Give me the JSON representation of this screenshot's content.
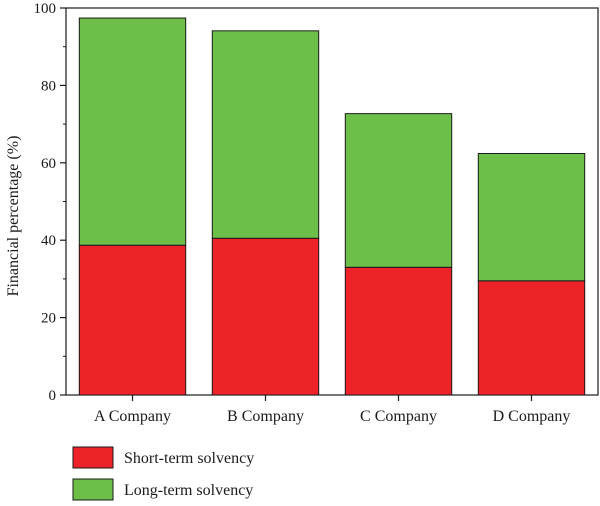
{
  "chart_data": {
    "type": "bar",
    "stacked": true,
    "categories": [
      "A Company",
      "B Company",
      "C Company",
      "D Company"
    ],
    "series": [
      {
        "name": "Short-term solvency",
        "color": "#ee2229",
        "values": [
          38.7,
          40.5,
          33.0,
          29.5
        ]
      },
      {
        "name": "Long-term solvency",
        "color": "#6dbf4a",
        "values": [
          58.7,
          53.6,
          39.7,
          32.9
        ]
      }
    ],
    "title": "",
    "xlabel": "",
    "ylabel": "Financial percentage (%)",
    "ylim": [
      0,
      100
    ],
    "yticks": [
      "0",
      "20",
      "40",
      "60",
      "80",
      "100"
    ],
    "grid": false,
    "legend_position": "bottom-left"
  }
}
